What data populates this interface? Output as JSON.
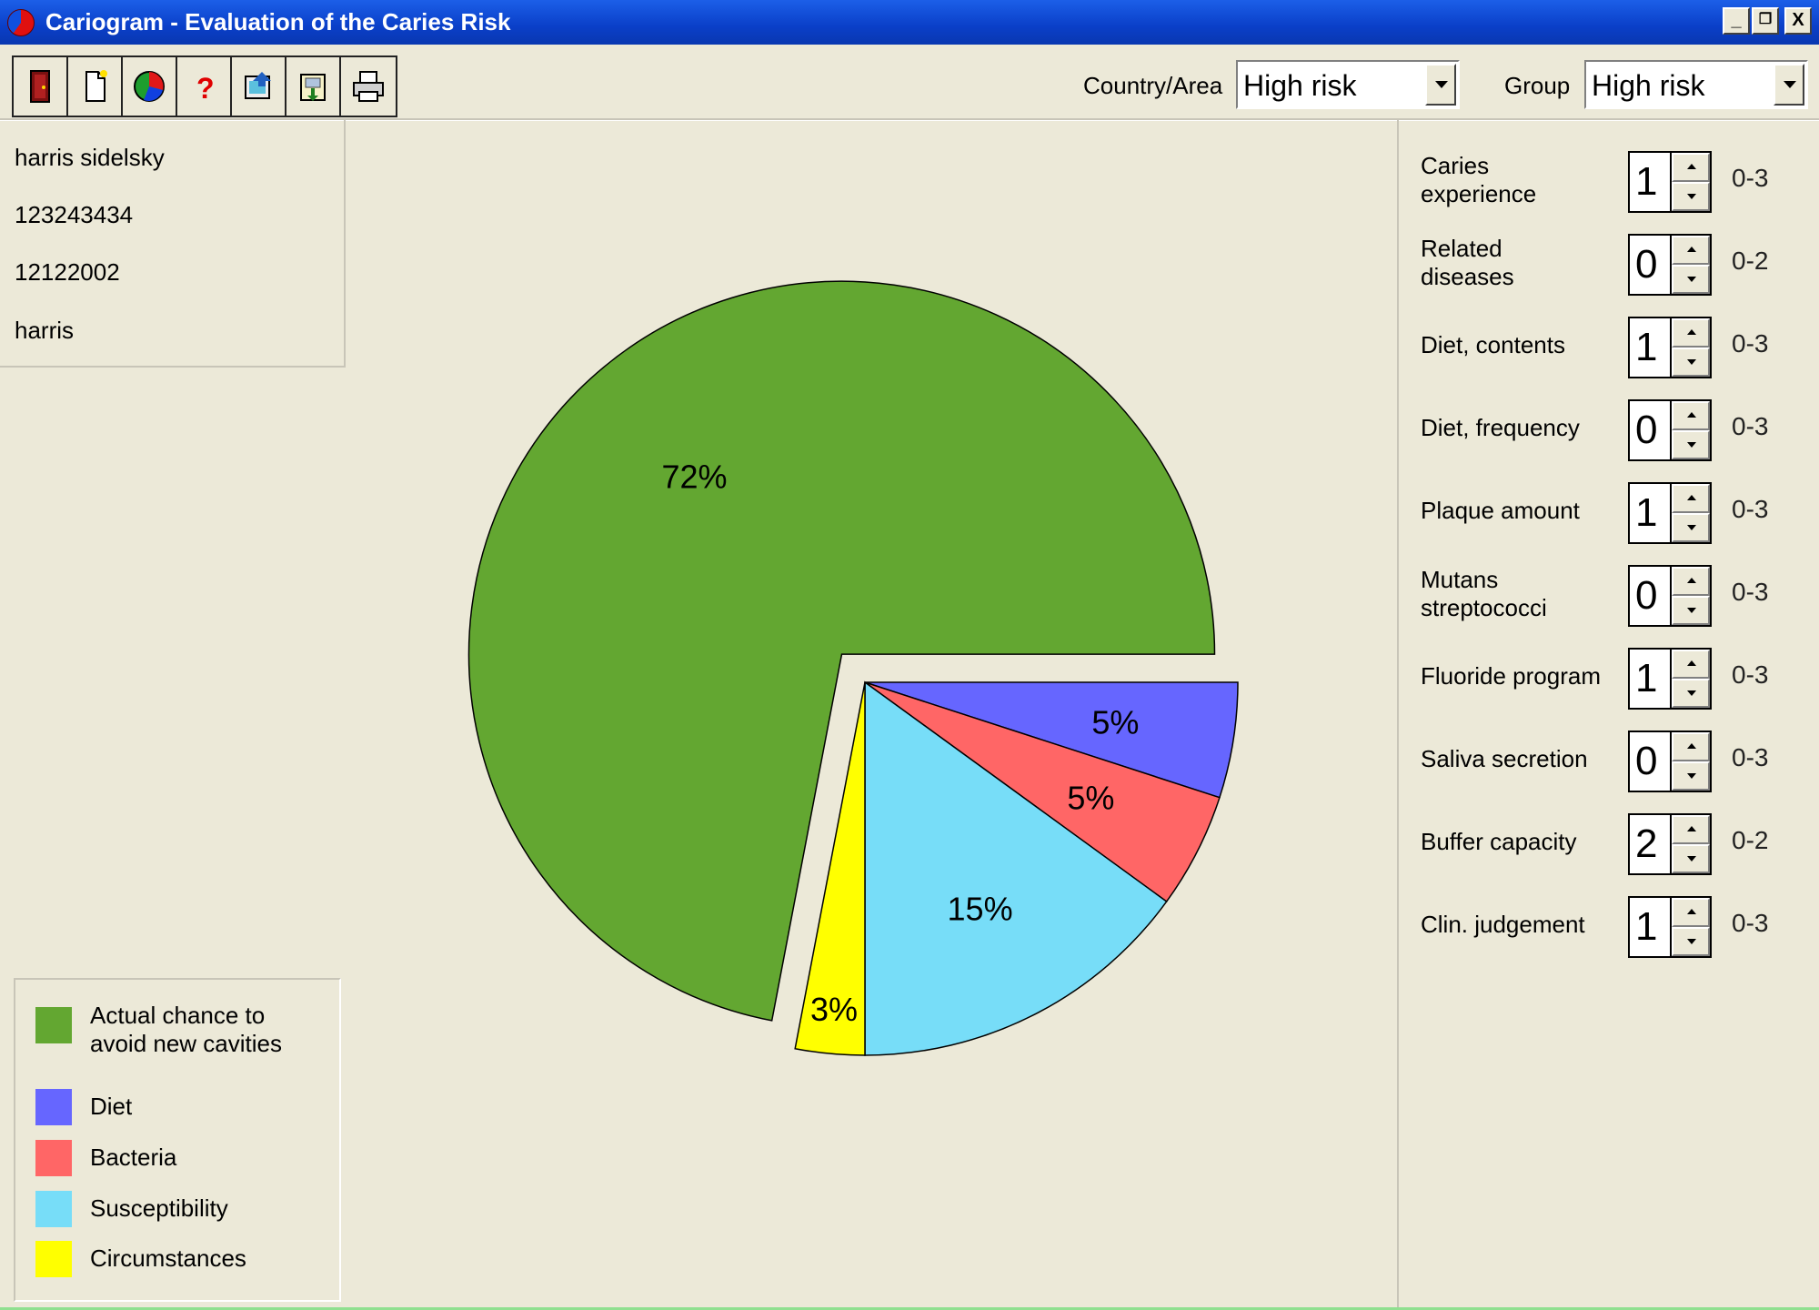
{
  "window": {
    "title": "Cariogram - Evaluation of the Caries Risk",
    "buttons": {
      "minimize": "_",
      "restore": "❐",
      "close": "X"
    }
  },
  "toolbar": {
    "buttons": [
      {
        "name": "exit-button",
        "icon": "door-icon"
      },
      {
        "name": "new-button",
        "icon": "new-document-icon"
      },
      {
        "name": "chart-button",
        "icon": "pie-chart-icon"
      },
      {
        "name": "help-button",
        "icon": "question-mark-icon"
      },
      {
        "name": "open-button",
        "icon": "open-file-icon"
      },
      {
        "name": "save-button",
        "icon": "save-file-icon"
      },
      {
        "name": "print-button",
        "icon": "printer-icon"
      }
    ],
    "country_label": "Country/Area",
    "country_value": "High risk",
    "group_label": "Group",
    "group_value": "High risk"
  },
  "patient": {
    "name": "harris sidelsky",
    "id": "123243434",
    "date": "12122002",
    "examiner": "harris"
  },
  "chart_data": {
    "type": "pie",
    "title": "",
    "slices": [
      {
        "label": "Actual chance to avoid new cavities",
        "value": 72,
        "display": "72%",
        "color": "#63A731",
        "exploded": true
      },
      {
        "label": "Diet",
        "value": 5,
        "display": "5%",
        "color": "#6666FF",
        "exploded": false
      },
      {
        "label": "Bacteria",
        "value": 5,
        "display": "5%",
        "color": "#FF6666",
        "exploded": false
      },
      {
        "label": "Susceptibility",
        "value": 15,
        "display": "15%",
        "color": "#77DDF8",
        "exploded": false
      },
      {
        "label": "Circumstances",
        "value": 3,
        "display": "3%",
        "color": "#FFFF00",
        "exploded": false
      }
    ],
    "legend_placement": "bottom-left"
  },
  "legend": {
    "items": [
      {
        "label_line1": "Actual chance to",
        "label_line2": "avoid new cavities",
        "color": "#63A731"
      },
      {
        "label_line1": "Diet",
        "label_line2": "",
        "color": "#6666FF"
      },
      {
        "label_line1": "Bacteria",
        "label_line2": "",
        "color": "#FF6666"
      },
      {
        "label_line1": "Susceptibility",
        "label_line2": "",
        "color": "#77DDF8"
      },
      {
        "label_line1": "Circumstances",
        "label_line2": "",
        "color": "#FFFF00"
      }
    ]
  },
  "parameters": [
    {
      "label_line1": "Caries",
      "label_line2": "experience",
      "value": "1",
      "range": "0-3"
    },
    {
      "label_line1": "Related",
      "label_line2": "diseases",
      "value": "0",
      "range": "0-2"
    },
    {
      "label_line1": "Diet, contents",
      "label_line2": "",
      "value": "1",
      "range": "0-3"
    },
    {
      "label_line1": "Diet, frequency",
      "label_line2": "",
      "value": "0",
      "range": "0-3"
    },
    {
      "label_line1": "Plaque amount",
      "label_line2": "",
      "value": "1",
      "range": "0-3"
    },
    {
      "label_line1": "Mutans",
      "label_line2": "streptococci",
      "value": "0",
      "range": "0-3"
    },
    {
      "label_line1": "Fluoride program",
      "label_line2": "",
      "value": "1",
      "range": "0-3"
    },
    {
      "label_line1": "Saliva secretion",
      "label_line2": "",
      "value": "0",
      "range": "0-3"
    },
    {
      "label_line1": "Buffer capacity",
      "label_line2": "",
      "value": "2",
      "range": "0-2"
    },
    {
      "label_line1": "Clin. judgement",
      "label_line2": "",
      "value": "1",
      "range": "0-3"
    }
  ]
}
